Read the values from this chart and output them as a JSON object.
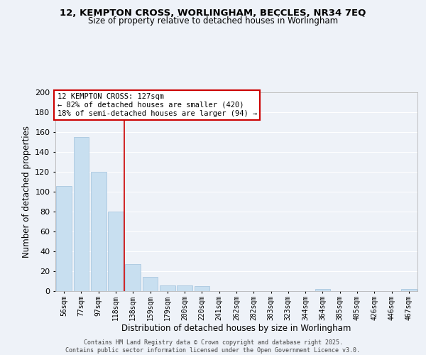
{
  "title": "12, KEMPTON CROSS, WORLINGHAM, BECCLES, NR34 7EQ",
  "subtitle": "Size of property relative to detached houses in Worlingham",
  "xlabel": "Distribution of detached houses by size in Worlingham",
  "ylabel": "Number of detached properties",
  "bar_color": "#c8dff0",
  "bar_edge_color": "#a0c0dc",
  "background_color": "#eef2f8",
  "grid_color": "#ffffff",
  "categories": [
    "56sqm",
    "77sqm",
    "97sqm",
    "118sqm",
    "138sqm",
    "159sqm",
    "179sqm",
    "200sqm",
    "220sqm",
    "241sqm",
    "262sqm",
    "282sqm",
    "303sqm",
    "323sqm",
    "344sqm",
    "364sqm",
    "385sqm",
    "405sqm",
    "426sqm",
    "446sqm",
    "467sqm"
  ],
  "values": [
    106,
    155,
    120,
    80,
    27,
    14,
    6,
    6,
    5,
    0,
    0,
    0,
    0,
    0,
    0,
    2,
    0,
    0,
    0,
    0,
    2
  ],
  "ylim": [
    0,
    200
  ],
  "yticks": [
    0,
    20,
    40,
    60,
    80,
    100,
    120,
    140,
    160,
    180,
    200
  ],
  "vline_x": 3.5,
  "vline_color": "#cc0000",
  "annotation_title": "12 KEMPTON CROSS: 127sqm",
  "annotation_line1": "← 82% of detached houses are smaller (420)",
  "annotation_line2": "18% of semi-detached houses are larger (94) →",
  "annotation_box_color": "#ffffff",
  "annotation_box_edge": "#cc0000",
  "footer1": "Contains HM Land Registry data © Crown copyright and database right 2025.",
  "footer2": "Contains public sector information licensed under the Open Government Licence v3.0."
}
